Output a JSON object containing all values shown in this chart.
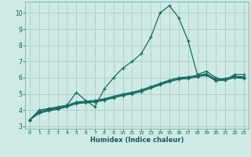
{
  "xlabel": "Humidex (Indice chaleur)",
  "background_color": "#ceeae6",
  "grid_color": "#b0d0cc",
  "line_color": "#1a6b5a",
  "xlim": [
    -0.5,
    23.5
  ],
  "ylim": [
    2.85,
    10.7
  ],
  "xticks": [
    0,
    1,
    2,
    3,
    4,
    5,
    6,
    7,
    8,
    9,
    10,
    11,
    12,
    13,
    14,
    15,
    16,
    17,
    18,
    19,
    20,
    21,
    22,
    23
  ],
  "yticks": [
    3,
    4,
    5,
    6,
    7,
    8,
    9,
    10
  ],
  "series1_x": [
    0,
    1,
    2,
    3,
    4,
    5,
    6,
    7,
    8,
    9,
    10,
    11,
    12,
    13,
    14,
    15,
    16,
    17,
    18,
    19,
    20,
    21,
    22,
    23
  ],
  "series1_y": [
    3.4,
    4.0,
    4.1,
    4.2,
    4.3,
    5.1,
    4.6,
    4.2,
    5.3,
    6.0,
    6.6,
    7.0,
    7.5,
    8.5,
    10.0,
    10.45,
    9.7,
    8.3,
    6.2,
    6.4,
    6.0,
    5.85,
    6.2,
    6.2
  ],
  "series2_x": [
    0,
    1,
    2,
    3,
    4,
    5,
    6,
    7,
    8,
    9,
    10,
    11,
    12,
    13,
    14,
    15,
    16,
    17,
    18,
    19,
    20,
    21,
    22,
    23
  ],
  "series2_y": [
    3.4,
    3.9,
    4.05,
    4.15,
    4.3,
    4.5,
    4.55,
    4.6,
    4.7,
    4.85,
    5.0,
    5.1,
    5.25,
    5.45,
    5.65,
    5.85,
    6.0,
    6.05,
    6.15,
    6.25,
    5.9,
    5.95,
    6.1,
    6.05
  ],
  "series3_x": [
    0,
    1,
    2,
    3,
    4,
    5,
    6,
    7,
    8,
    9,
    10,
    11,
    12,
    13,
    14,
    15,
    16,
    17,
    18,
    19,
    20,
    21,
    22,
    23
  ],
  "series3_y": [
    3.4,
    3.85,
    4.0,
    4.1,
    4.25,
    4.45,
    4.5,
    4.55,
    4.65,
    4.8,
    4.95,
    5.05,
    5.2,
    5.4,
    5.6,
    5.8,
    5.95,
    6.0,
    6.1,
    6.2,
    5.85,
    5.9,
    6.05,
    6.0
  ],
  "series4_x": [
    0,
    1,
    2,
    3,
    4,
    5,
    6,
    7,
    8,
    9,
    10,
    11,
    12,
    13,
    14,
    15,
    16,
    17,
    18,
    19,
    20,
    21,
    22,
    23
  ],
  "series4_y": [
    3.4,
    3.8,
    3.95,
    4.05,
    4.2,
    4.4,
    4.45,
    4.5,
    4.6,
    4.75,
    4.9,
    5.0,
    5.15,
    5.35,
    5.55,
    5.75,
    5.9,
    5.95,
    6.05,
    6.15,
    5.8,
    5.85,
    6.0,
    5.95
  ]
}
